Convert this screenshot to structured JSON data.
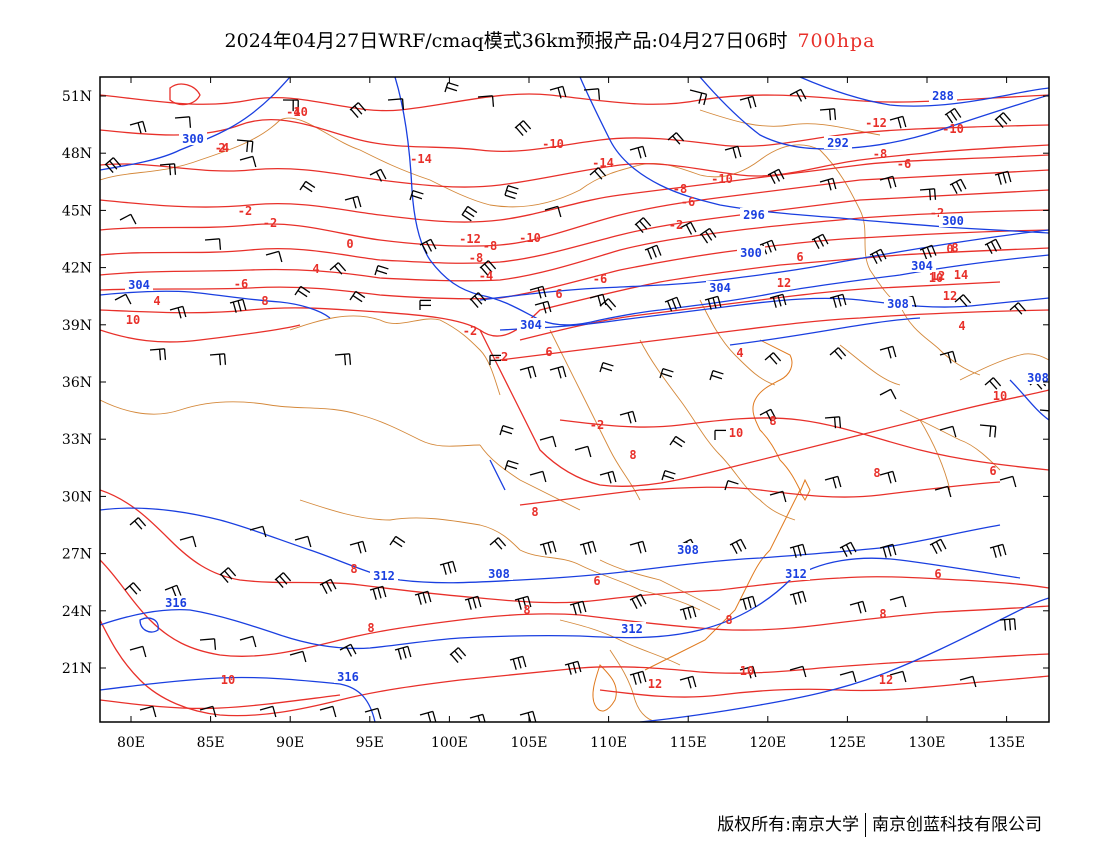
{
  "title": {
    "main": "2024年04月27日WRF/cmaq模式36km预报产品:04月27日06时",
    "level": "700hpa"
  },
  "axes": {
    "lat_labels": [
      "51N",
      "48N",
      "45N",
      "42N",
      "39N",
      "36N",
      "33N",
      "30N",
      "27N",
      "24N",
      "21N"
    ],
    "lon_labels": [
      "80E",
      "85E",
      "90E",
      "95E",
      "100E",
      "105E",
      "110E",
      "115E",
      "120E",
      "125E",
      "130E",
      "135E"
    ]
  },
  "colors": {
    "temperature": "#e8302a",
    "geopotential": "#1a3fe0",
    "borders": "#d4883a",
    "wind": "#000000"
  },
  "temperature_labels": [
    "-10",
    "-4",
    "-14",
    "-10",
    "-14",
    "-10",
    "-8",
    "-6",
    "-12",
    "-10",
    "-8",
    "-6",
    "-2",
    "-2",
    "0",
    "-2",
    "-6",
    "-12",
    "-8",
    "-10",
    "-8",
    "-2",
    "-6",
    "-4",
    "-2",
    "0",
    "4",
    "6",
    "8",
    "4",
    "10",
    "12",
    "6",
    "4",
    "-2",
    "6",
    "4",
    "-2",
    "8",
    "10",
    "8",
    "8",
    "6",
    "8",
    "6",
    "8",
    "8",
    "8",
    "6",
    "8",
    "8",
    "10",
    "10",
    "12",
    "12",
    "10",
    "12",
    "14",
    "10",
    "12",
    "8",
    "4",
    "2"
  ],
  "geopotential_labels": [
    "288",
    "292",
    "296",
    "300",
    "300",
    "304",
    "304",
    "300",
    "304",
    "308",
    "304",
    "312",
    "308",
    "308",
    "312",
    "312",
    "316",
    "316",
    "308"
  ],
  "footer": {
    "left": "版权所有:南京大学",
    "right": "南京创蓝科技有限公司"
  }
}
